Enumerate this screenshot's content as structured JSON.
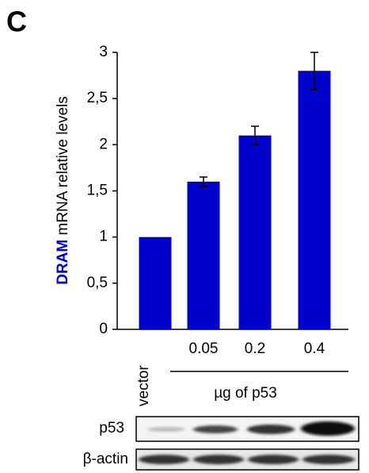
{
  "panel_label": "C",
  "chart_data": {
    "type": "bar",
    "ylabel": [
      "DRAM",
      "mRNA relative levels"
    ],
    "categories": [
      "vector",
      "0.05",
      "0.2",
      "0.4"
    ],
    "values": [
      1,
      1.6,
      2.1,
      2.8
    ],
    "errors": [
      null,
      0.05,
      0.1,
      0.2
    ],
    "color": "#0000cc",
    "group_label": "µg of p53",
    "ylim": [
      0,
      3
    ],
    "yticks": [
      0,
      {
        "value": 0.5,
        "label": "0,5"
      },
      1,
      {
        "value": 1.5,
        "label": "1,5"
      },
      2,
      {
        "value": 2.5,
        "label": "2,5"
      },
      3
    ]
  },
  "blot": {
    "rows": [
      "p53",
      "β-actin"
    ]
  }
}
